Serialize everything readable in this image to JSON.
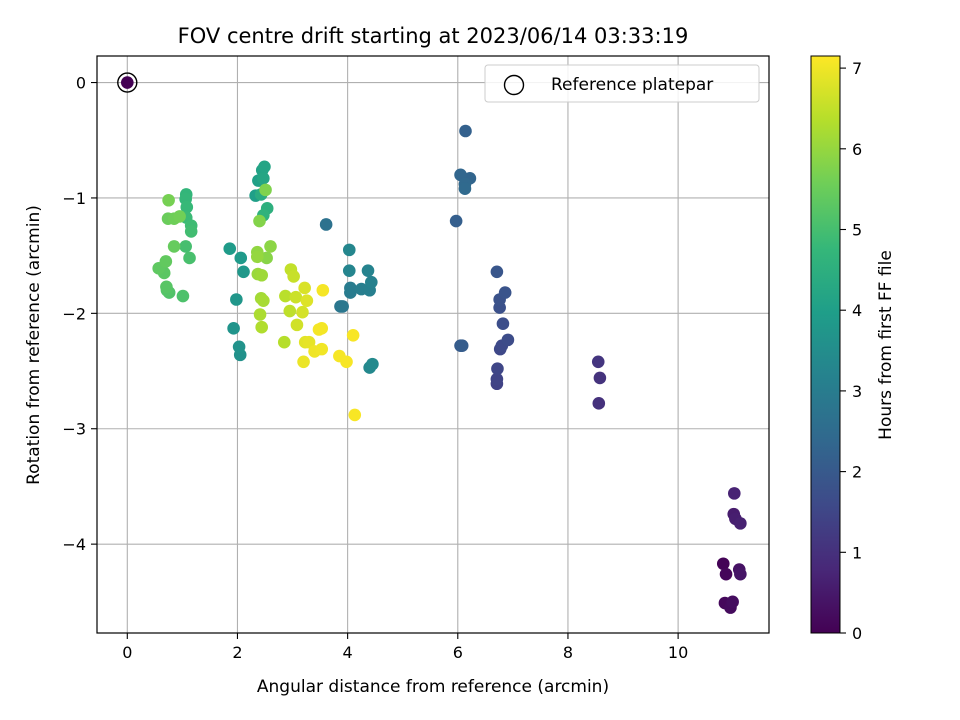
{
  "chart_data": {
    "type": "scatter",
    "title": "FOV centre drift starting at 2023/06/14 03:33:19",
    "xlabel": "Angular distance from reference (arcmin)",
    "ylabel": "Rotation from reference (arcmin)",
    "xlim": [
      -0.55,
      11.65
    ],
    "ylim": [
      -4.77,
      0.23
    ],
    "x_ticks": [
      0,
      2,
      4,
      6,
      8,
      10
    ],
    "y_ticks": [
      0,
      -1,
      -2,
      -3,
      -4
    ],
    "x_tick_labels": [
      "0",
      "2",
      "4",
      "6",
      "8",
      "10"
    ],
    "y_tick_labels": [
      "0",
      "−1",
      "−2",
      "−3",
      "−4"
    ],
    "grid": true,
    "legend": {
      "placement": "top-right",
      "entries": [
        "Reference platepar"
      ]
    },
    "reference_point": {
      "x": 0,
      "y": 0,
      "hours": 0
    },
    "colorbar": {
      "label": "Hours from first FF file",
      "range": [
        0,
        7.15
      ],
      "ticks": [
        0,
        1,
        2,
        3,
        4,
        5,
        6,
        7
      ],
      "tick_labels": [
        "0",
        "1",
        "2",
        "3",
        "4",
        "5",
        "6",
        "7"
      ],
      "colormap": "viridis",
      "stops": [
        "#440154",
        "#482878",
        "#3e4a89",
        "#31688e",
        "#26828e",
        "#1f9e89",
        "#35b779",
        "#6ece58",
        "#b5de2b",
        "#fde725"
      ]
    },
    "points": [
      {
        "x": 10.82,
        "y": -4.17,
        "hours": 0.05
      },
      {
        "x": 10.87,
        "y": -4.26,
        "hours": 0.1
      },
      {
        "x": 10.85,
        "y": -4.51,
        "hours": 0.15
      },
      {
        "x": 10.95,
        "y": -4.55,
        "hours": 0.2
      },
      {
        "x": 10.99,
        "y": -4.5,
        "hours": 0.25
      },
      {
        "x": 11.11,
        "y": -4.22,
        "hours": 0.35
      },
      {
        "x": 11.13,
        "y": -4.26,
        "hours": 0.4
      },
      {
        "x": 11.01,
        "y": -3.74,
        "hours": 0.55
      },
      {
        "x": 11.04,
        "y": -3.78,
        "hours": 0.6
      },
      {
        "x": 11.13,
        "y": -3.82,
        "hours": 0.65
      },
      {
        "x": 11.02,
        "y": -3.56,
        "hours": 0.7
      },
      {
        "x": 8.56,
        "y": -2.78,
        "hours": 1.0
      },
      {
        "x": 8.58,
        "y": -2.56,
        "hours": 1.05
      },
      {
        "x": 8.55,
        "y": -2.42,
        "hours": 1.1
      },
      {
        "x": 6.71,
        "y": -2.61,
        "hours": 1.4
      },
      {
        "x": 6.71,
        "y": -2.57,
        "hours": 1.45
      },
      {
        "x": 6.72,
        "y": -2.48,
        "hours": 1.5
      },
      {
        "x": 6.77,
        "y": -2.31,
        "hours": 1.55
      },
      {
        "x": 6.8,
        "y": -2.28,
        "hours": 1.6
      },
      {
        "x": 6.91,
        "y": -2.23,
        "hours": 1.65
      },
      {
        "x": 6.82,
        "y": -2.09,
        "hours": 1.7
      },
      {
        "x": 6.76,
        "y": -1.95,
        "hours": 1.75
      },
      {
        "x": 6.76,
        "y": -1.88,
        "hours": 1.8
      },
      {
        "x": 6.86,
        "y": -1.82,
        "hours": 1.85
      },
      {
        "x": 6.71,
        "y": -1.64,
        "hours": 1.9
      },
      {
        "x": 6.05,
        "y": -2.28,
        "hours": 2.05
      },
      {
        "x": 6.08,
        "y": -2.28,
        "hours": 2.1
      },
      {
        "x": 5.97,
        "y": -1.2,
        "hours": 2.15
      },
      {
        "x": 6.14,
        "y": -0.42,
        "hours": 2.2
      },
      {
        "x": 6.22,
        "y": -0.83,
        "hours": 2.3
      },
      {
        "x": 6.05,
        "y": -0.8,
        "hours": 2.35
      },
      {
        "x": 6.13,
        "y": -0.88,
        "hours": 2.4
      },
      {
        "x": 6.13,
        "y": -0.92,
        "hours": 2.45
      },
      {
        "x": 3.61,
        "y": -1.23,
        "hours": 2.7
      },
      {
        "x": 3.87,
        "y": -1.94,
        "hours": 2.8
      },
      {
        "x": 3.91,
        "y": -1.94,
        "hours": 2.85
      },
      {
        "x": 4.05,
        "y": -1.82,
        "hours": 2.95
      },
      {
        "x": 4.05,
        "y": -1.78,
        "hours": 3.0
      },
      {
        "x": 4.25,
        "y": -1.79,
        "hours": 3.05
      },
      {
        "x": 4.4,
        "y": -1.8,
        "hours": 3.1
      },
      {
        "x": 4.43,
        "y": -1.73,
        "hours": 3.15
      },
      {
        "x": 4.37,
        "y": -1.63,
        "hours": 3.2
      },
      {
        "x": 4.03,
        "y": -1.63,
        "hours": 3.25
      },
      {
        "x": 4.03,
        "y": -1.45,
        "hours": 3.3
      },
      {
        "x": 4.4,
        "y": -2.47,
        "hours": 3.35
      },
      {
        "x": 4.45,
        "y": -2.44,
        "hours": 3.4
      },
      {
        "x": 2.05,
        "y": -2.36,
        "hours": 3.6
      },
      {
        "x": 2.03,
        "y": -2.29,
        "hours": 3.65
      },
      {
        "x": 1.93,
        "y": -2.13,
        "hours": 3.7
      },
      {
        "x": 1.98,
        "y": -1.88,
        "hours": 3.75
      },
      {
        "x": 2.11,
        "y": -1.64,
        "hours": 3.8
      },
      {
        "x": 2.06,
        "y": -1.52,
        "hours": 3.85
      },
      {
        "x": 1.86,
        "y": -1.44,
        "hours": 3.9
      },
      {
        "x": 2.33,
        "y": -0.98,
        "hours": 4.0
      },
      {
        "x": 2.38,
        "y": -0.85,
        "hours": 4.05
      },
      {
        "x": 2.45,
        "y": -0.76,
        "hours": 4.1
      },
      {
        "x": 2.49,
        "y": -0.73,
        "hours": 4.15
      },
      {
        "x": 2.47,
        "y": -0.83,
        "hours": 4.2
      },
      {
        "x": 2.43,
        "y": -0.97,
        "hours": 4.4
      },
      {
        "x": 2.54,
        "y": -1.09,
        "hours": 4.5
      },
      {
        "x": 2.47,
        "y": -1.15,
        "hours": 4.6
      },
      {
        "x": 1.07,
        "y": -0.97,
        "hours": 4.7
      },
      {
        "x": 1.06,
        "y": -1.01,
        "hours": 4.75
      },
      {
        "x": 1.08,
        "y": -1.08,
        "hours": 4.8
      },
      {
        "x": 1.07,
        "y": -1.17,
        "hours": 4.85
      },
      {
        "x": 1.16,
        "y": -1.24,
        "hours": 4.9
      },
      {
        "x": 1.16,
        "y": -1.29,
        "hours": 4.95
      },
      {
        "x": 1.06,
        "y": -1.42,
        "hours": 5.0
      },
      {
        "x": 1.13,
        "y": -1.52,
        "hours": 5.05
      },
      {
        "x": 1.01,
        "y": -1.85,
        "hours": 5.1
      },
      {
        "x": 0.76,
        "y": -1.82,
        "hours": 5.15
      },
      {
        "x": 0.72,
        "y": -1.8,
        "hours": 5.2
      },
      {
        "x": 0.71,
        "y": -1.77,
        "hours": 5.25
      },
      {
        "x": 0.67,
        "y": -1.65,
        "hours": 5.3
      },
      {
        "x": 0.57,
        "y": -1.61,
        "hours": 5.35
      },
      {
        "x": 0.7,
        "y": -1.55,
        "hours": 5.4
      },
      {
        "x": 0.85,
        "y": -1.42,
        "hours": 5.45
      },
      {
        "x": 0.74,
        "y": -1.18,
        "hours": 5.5
      },
      {
        "x": 0.85,
        "y": -1.18,
        "hours": 5.55
      },
      {
        "x": 0.95,
        "y": -1.16,
        "hours": 5.6
      },
      {
        "x": 0.75,
        "y": -1.02,
        "hours": 5.65
      },
      {
        "x": 2.51,
        "y": -0.93,
        "hours": 5.75
      },
      {
        "x": 2.4,
        "y": -1.2,
        "hours": 5.8
      },
      {
        "x": 2.53,
        "y": -1.52,
        "hours": 5.85
      },
      {
        "x": 2.6,
        "y": -1.42,
        "hours": 5.9
      },
      {
        "x": 2.36,
        "y": -1.47,
        "hours": 5.95
      },
      {
        "x": 2.36,
        "y": -1.51,
        "hours": 6.0
      },
      {
        "x": 2.37,
        "y": -1.66,
        "hours": 6.05
      },
      {
        "x": 2.44,
        "y": -1.67,
        "hours": 6.1
      },
      {
        "x": 2.43,
        "y": -1.87,
        "hours": 6.15
      },
      {
        "x": 2.47,
        "y": -1.89,
        "hours": 6.2
      },
      {
        "x": 2.41,
        "y": -2.01,
        "hours": 6.25
      },
      {
        "x": 2.44,
        "y": -2.12,
        "hours": 6.3
      },
      {
        "x": 2.85,
        "y": -2.25,
        "hours": 6.35
      },
      {
        "x": 2.87,
        "y": -1.85,
        "hours": 6.4
      },
      {
        "x": 2.95,
        "y": -1.98,
        "hours": 6.45
      },
      {
        "x": 2.97,
        "y": -1.62,
        "hours": 6.5
      },
      {
        "x": 3.02,
        "y": -1.68,
        "hours": 6.55
      },
      {
        "x": 3.06,
        "y": -1.86,
        "hours": 6.6
      },
      {
        "x": 3.08,
        "y": -2.1,
        "hours": 6.65
      },
      {
        "x": 3.18,
        "y": -1.99,
        "hours": 6.7
      },
      {
        "x": 3.22,
        "y": -1.78,
        "hours": 6.75
      },
      {
        "x": 3.26,
        "y": -1.89,
        "hours": 6.8
      },
      {
        "x": 3.23,
        "y": -2.25,
        "hours": 6.85
      },
      {
        "x": 3.3,
        "y": -2.25,
        "hours": 6.9
      },
      {
        "x": 3.2,
        "y": -2.42,
        "hours": 6.95
      },
      {
        "x": 3.4,
        "y": -2.33,
        "hours": 7.0
      },
      {
        "x": 3.53,
        "y": -2.31,
        "hours": 7.02
      },
      {
        "x": 3.53,
        "y": -2.13,
        "hours": 7.04
      },
      {
        "x": 3.48,
        "y": -2.14,
        "hours": 7.05
      },
      {
        "x": 3.55,
        "y": -1.8,
        "hours": 7.06
      },
      {
        "x": 3.85,
        "y": -2.37,
        "hours": 7.07
      },
      {
        "x": 3.98,
        "y": -2.42,
        "hours": 7.08
      },
      {
        "x": 4.1,
        "y": -2.19,
        "hours": 7.09
      },
      {
        "x": 4.13,
        "y": -2.88,
        "hours": 7.1
      }
    ]
  }
}
